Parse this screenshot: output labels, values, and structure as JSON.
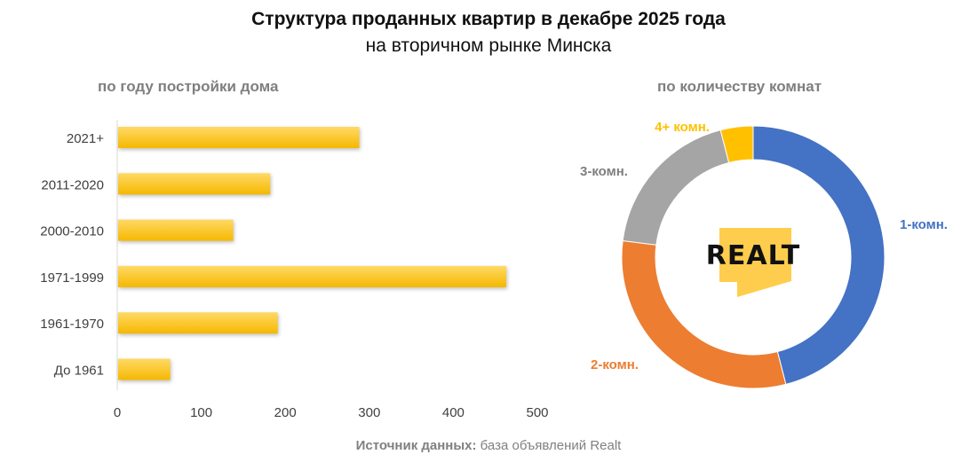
{
  "header": {
    "title": "Структура проданных квартир в декабре 2025 года",
    "subtitle": "на вторичном рынке Минска"
  },
  "source": {
    "label": "Источник данных:",
    "text": " база объявлений Realt"
  },
  "logo_text": "REALT",
  "colors": {
    "bar": "#ffc000",
    "blue": "#4472c4",
    "orange": "#ed7d31",
    "gray": "#a5a5a5",
    "yellow": "#ffc000"
  },
  "chart_data": [
    {
      "type": "bar",
      "orientation": "horizontal",
      "title": "по году постройки дома",
      "categories": [
        "2021+",
        "2011-2020",
        "2000-2010",
        "1971-1999",
        "1961-1970",
        "До 1961"
      ],
      "values": [
        287,
        181,
        137,
        462,
        190,
        62
      ],
      "xlim": [
        0,
        500
      ],
      "xticks": [
        0,
        100,
        200,
        300,
        400,
        500
      ],
      "grid": false
    },
    {
      "type": "pie",
      "donut": true,
      "title": "по количеству комнат",
      "labels": [
        "1-комн.",
        "2-комн.",
        "3-комн.",
        "4+ комн."
      ],
      "values": [
        46,
        31,
        19,
        4
      ],
      "colors": [
        "#4472c4",
        "#ed7d31",
        "#a5a5a5",
        "#ffc000"
      ]
    }
  ]
}
